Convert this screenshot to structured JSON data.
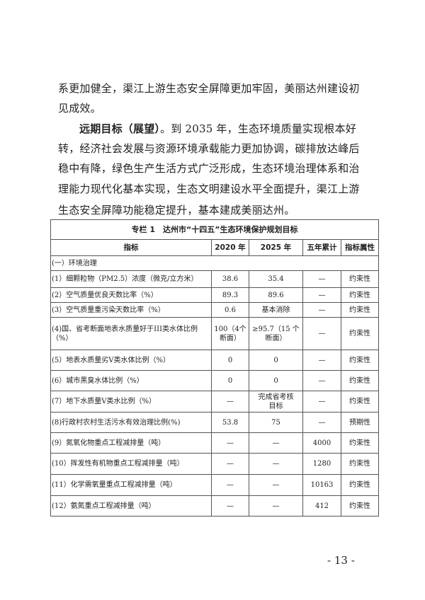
{
  "body": {
    "lines": [
      "系更加健全，渠江上游生态安全屏障更加牢固，美丽达州建设初",
      "见成效。"
    ],
    "lead": "远期目标（展望）",
    "p2_first": "。到 2035 年，生态环境质量实现根本好",
    "p2_lines": [
      "转，经济社会发展与资源环境承载能力更加协调，碳排放达峰后",
      "稳中有降，绿色生产生活方式广泛形成，生态环境治理体系和治",
      "理能力现代化基本实现，生态文明建设水平全面提升，渠江上游",
      "生态安全屏障功能稳定提升，基本建成美丽达州。"
    ]
  },
  "table": {
    "title": "专栏 1　达州市“十四五”生态环境保护规划目标",
    "headers": [
      "指标",
      "2020 年",
      "2025 年",
      "五年累计",
      "指标属性"
    ],
    "section": "(一）环境治理",
    "rows": [
      [
        "(1）细颗粒物（PM2.5）浓度（微克/立方米）",
        "38.6",
        "35.4",
        "—",
        "约束性"
      ],
      [
        "(2）空气质量优良天数比率（%）",
        "89.3",
        "89.6",
        "—",
        "约束性"
      ],
      [
        "(3）空气质量重污染天数比率（%）",
        "0.6",
        "基本消除",
        "—",
        "约束性"
      ],
      [
        "(4)国、省考断面地表水质量好于III类水体比例（%）",
        "100（4个断面）",
        "≥95.7（15 个断面）",
        "—",
        "约束性"
      ],
      [
        "(5）地表水质量劣Ⅴ类水体比例（%）",
        "0",
        "0",
        "—",
        "约束性"
      ],
      [
        "(6）城市黑臭水体比例（%）",
        "0",
        "0",
        "—",
        "约束性"
      ],
      [
        "(7）地下水质量Ⅴ类水比例（%）",
        "—",
        "完成省考核目标",
        "—",
        "约束性"
      ],
      [
        "(8)行政村农村生活污水有效治理比例(%)",
        "53.8",
        "75",
        "—",
        "预期性"
      ],
      [
        "(9）氮氧化物重点工程减排量（吨）",
        "—",
        "—",
        "4000",
        "约束性"
      ],
      [
        "(10）挥发性有机物重点工程减排量（吨）",
        "—",
        "—",
        "1280",
        "约束性"
      ],
      [
        "(11）化学需氧量重点工程减排量（吨）",
        "—",
        "—",
        "10163",
        "约束性"
      ],
      [
        "(12）氨氮重点工程减排量（吨）",
        "—",
        "—",
        "412",
        "约束性"
      ]
    ]
  },
  "page_number": "- 13 -"
}
